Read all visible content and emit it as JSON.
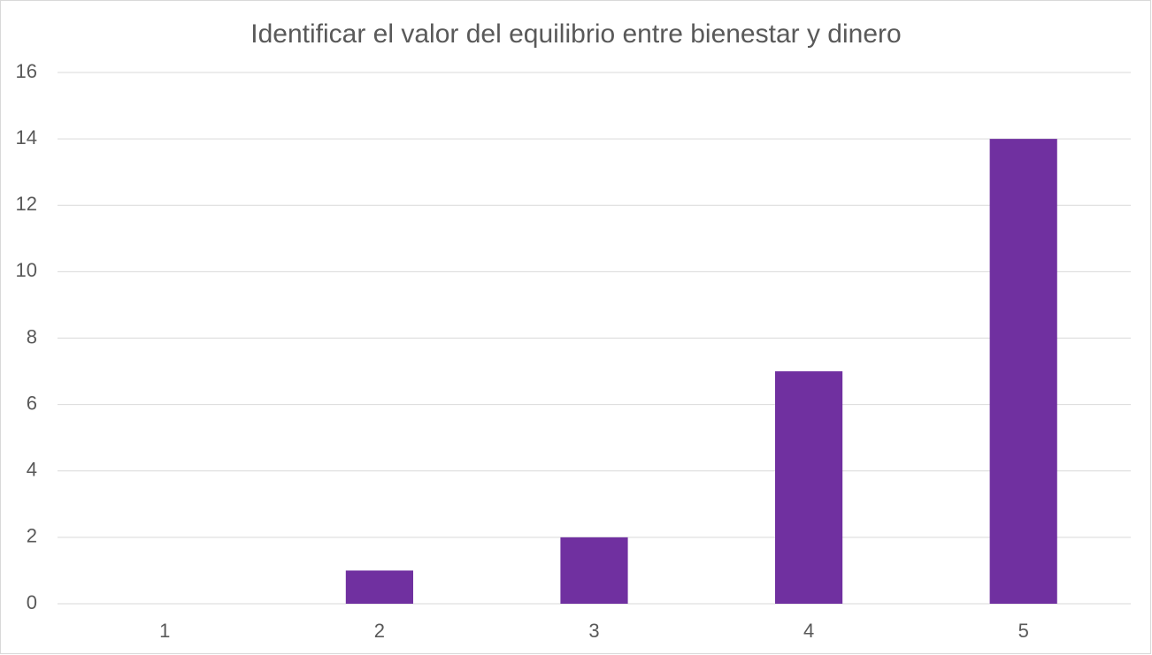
{
  "chart_data": {
    "type": "bar",
    "title": "Identificar el valor del equilibrio entre bienestar y dinero",
    "categories": [
      "1",
      "2",
      "3",
      "4",
      "5"
    ],
    "values": [
      0,
      1,
      2,
      7,
      14
    ],
    "color": "#7030a0",
    "ylim": [
      0,
      16
    ],
    "yticks": [
      0,
      2,
      4,
      6,
      8,
      10,
      12,
      14,
      16
    ],
    "grid": true
  }
}
